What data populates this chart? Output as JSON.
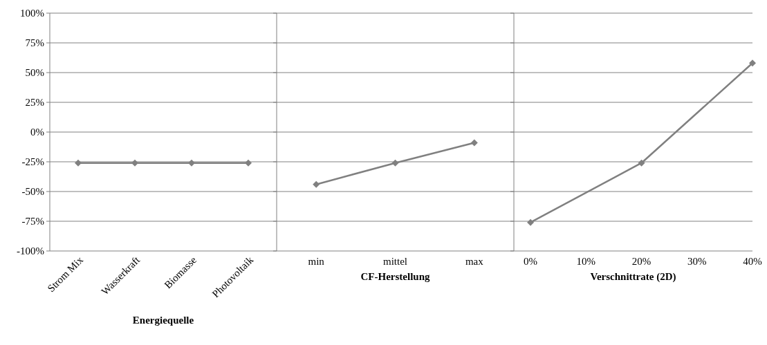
{
  "chart_data": [
    {
      "type": "line",
      "xlabel": "Energiequelle",
      "categories": [
        "Strom Mix",
        "Wasserkraft",
        "Biomasse",
        "Photovoltaik"
      ],
      "series": [
        {
          "color": "#808080",
          "values": [
            -26,
            -26,
            -26,
            -26
          ]
        }
      ],
      "ylim": [
        -100,
        100
      ],
      "yticks": [
        {
          "value": -100,
          "label": "-100%"
        },
        {
          "value": -75,
          "label": "-75%"
        },
        {
          "value": -50,
          "label": "-50%"
        },
        {
          "value": -25,
          "label": "-25%"
        },
        {
          "value": 0,
          "label": "0%"
        },
        {
          "value": 25,
          "label": "25%"
        },
        {
          "value": 50,
          "label": "50%"
        },
        {
          "value": 75,
          "label": "75%"
        },
        {
          "value": 100,
          "label": "100%"
        }
      ],
      "grid": "y",
      "marker": "diamond",
      "line_style": "solid"
    },
    {
      "type": "line",
      "xlabel": "CF-Herstellung",
      "categories": [
        "min",
        "mittel",
        "max"
      ],
      "series": [
        {
          "color": "#808080",
          "values": [
            -44,
            -26,
            -9
          ]
        }
      ],
      "ylim": [
        -100,
        100
      ],
      "yticks": [
        -100,
        -75,
        -50,
        -25,
        0,
        25,
        50,
        75,
        100
      ],
      "grid": "y",
      "marker": "diamond",
      "line_style": "solid",
      "tick_labels": "x"
    },
    {
      "type": "line",
      "xlabel": "Verschnittrate (2D)",
      "x": [
        0,
        20,
        40
      ],
      "series": [
        {
          "color": "#808080",
          "values": [
            -76,
            -26,
            58
          ]
        }
      ],
      "xlim": [
        -3,
        40
      ],
      "xticks": [
        {
          "value": 0,
          "label": "0%"
        },
        {
          "value": 10,
          "label": "10%"
        },
        {
          "value": 20,
          "label": "20%"
        },
        {
          "value": 30,
          "label": "30%"
        },
        {
          "value": 40,
          "label": "40%"
        }
      ],
      "ylim": [
        -100,
        100
      ],
      "yticks": [
        -100,
        -75,
        -50,
        -25,
        0,
        25,
        50,
        75,
        100
      ],
      "grid": "y",
      "marker": "diamond",
      "line_style": "solid",
      "tick_labels": "x"
    }
  ]
}
